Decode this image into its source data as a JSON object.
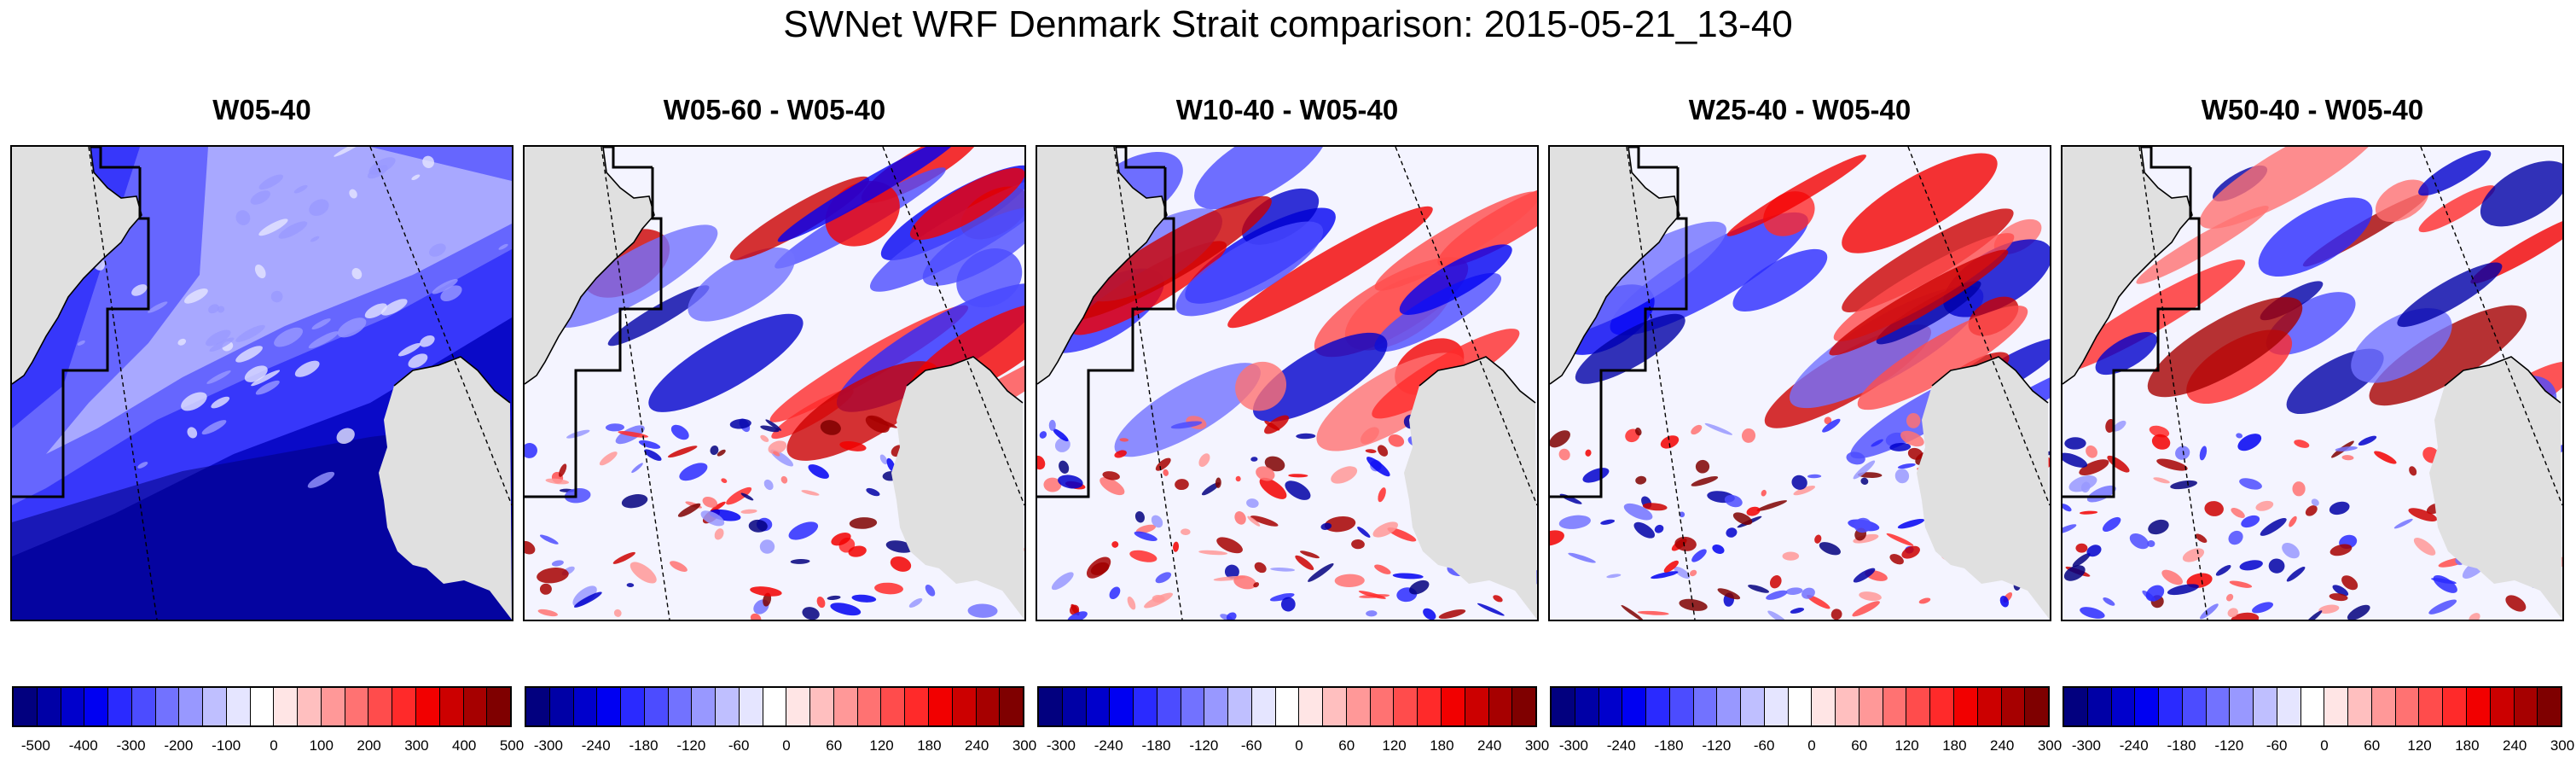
{
  "title": "SWNet WRF Denmark Strait comparison: 2015-05-21_13-40",
  "colors": {
    "land": "#e0e0e0",
    "palette": [
      "#02007f",
      "#0000a6",
      "#0000cc",
      "#0000f2",
      "#2a2aff",
      "#4c4cff",
      "#7272ff",
      "#9898ff",
      "#bfbfff",
      "#e5e5ff",
      "#ffffff",
      "#ffe5e5",
      "#ffbfbf",
      "#ff9898",
      "#ff7272",
      "#ff4c4c",
      "#ff2a2a",
      "#f20000",
      "#cc0000",
      "#a60000",
      "#7f0000"
    ]
  },
  "panels": [
    {
      "title": "W05-40",
      "field_type": "absolute",
      "colorbar_labels": [
        "-500",
        "-400",
        "-300",
        "-200",
        "-100",
        "0",
        "100",
        "200",
        "300",
        "400",
        "500"
      ]
    },
    {
      "title": "W05-60 - W05-40",
      "field_type": "difference",
      "colorbar_labels": [
        "-300",
        "-240",
        "-180",
        "-120",
        "-60",
        "0",
        "60",
        "120",
        "180",
        "240",
        "300"
      ]
    },
    {
      "title": "W10-40 - W05-40",
      "field_type": "difference",
      "colorbar_labels": [
        "-300",
        "-240",
        "-180",
        "-120",
        "-60",
        "0",
        "60",
        "120",
        "180",
        "240",
        "300"
      ]
    },
    {
      "title": "W25-40 - W05-40",
      "field_type": "difference",
      "colorbar_labels": [
        "-300",
        "-240",
        "-180",
        "-120",
        "-60",
        "0",
        "60",
        "120",
        "180",
        "240",
        "300"
      ]
    },
    {
      "title": "W50-40 - W05-40",
      "field_type": "difference",
      "colorbar_labels": [
        "-300",
        "-240",
        "-180",
        "-120",
        "-60",
        "0",
        "60",
        "120",
        "180",
        "240",
        "300"
      ]
    }
  ]
}
